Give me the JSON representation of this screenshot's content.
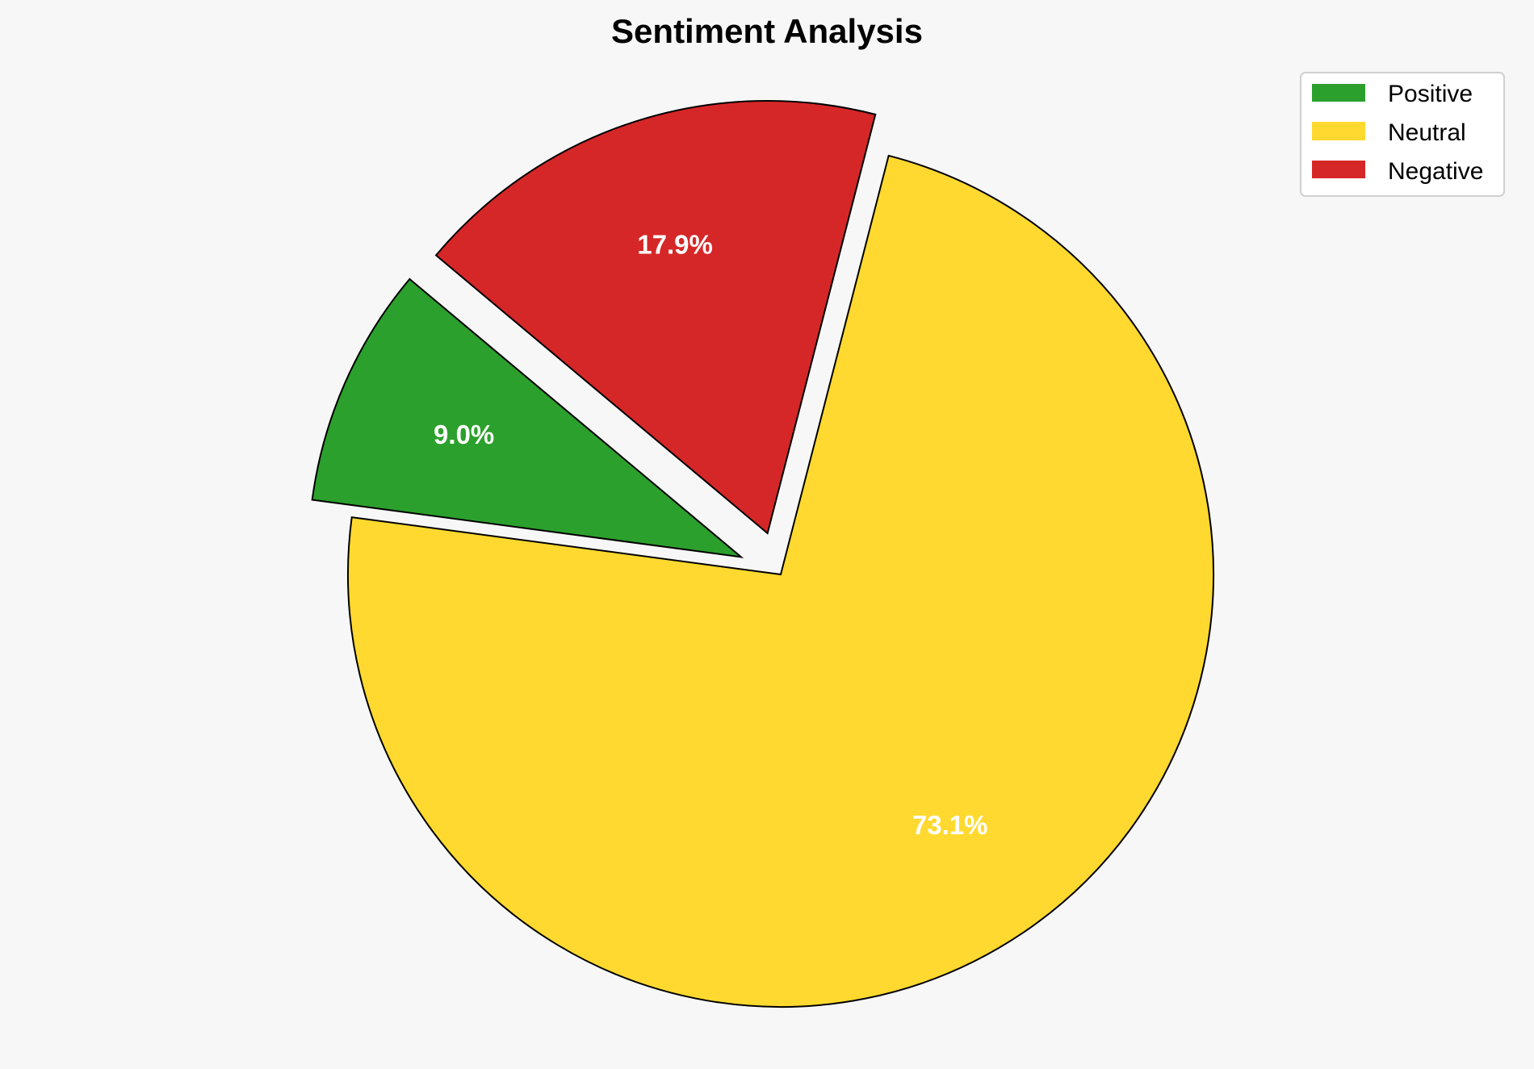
{
  "chart_data": {
    "type": "pie",
    "title": "Sentiment Analysis",
    "categories": [
      "Positive",
      "Neutral",
      "Negative"
    ],
    "values": [
      9.0,
      73.1,
      17.9
    ],
    "labels": [
      "9.0%",
      "73.1%",
      "17.9%"
    ],
    "colors": [
      "#2ca02c",
      "#ffd92f",
      "#d62728"
    ],
    "explode": [
      0.1,
      0,
      0.1
    ],
    "start_angle": 140,
    "legend": {
      "position": "top-right",
      "entries": [
        "Positive",
        "Neutral",
        "Negative"
      ]
    },
    "background": "#f7f7f7"
  }
}
